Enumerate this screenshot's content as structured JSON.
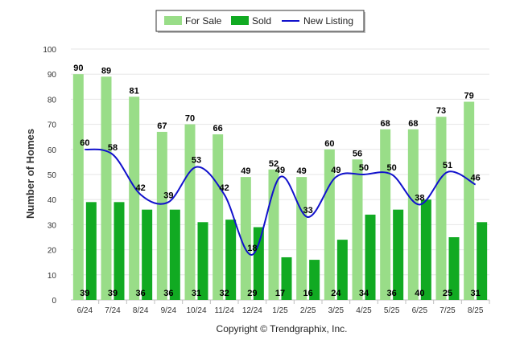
{
  "chart_data": {
    "type": "bar",
    "ylabel": "Number of Homes",
    "xlabel": "",
    "ylim": [
      0,
      100
    ],
    "yticks": [
      0,
      10,
      20,
      30,
      40,
      50,
      60,
      70,
      80,
      90,
      100
    ],
    "categories": [
      "6/24",
      "7/24",
      "8/24",
      "9/24",
      "10/24",
      "11/24",
      "12/24",
      "1/25",
      "2/25",
      "3/25",
      "4/25",
      "5/25",
      "6/25",
      "7/25",
      "8/25"
    ],
    "series": [
      {
        "name": "For Sale",
        "type": "bar",
        "color": "#99dd88",
        "values": [
          90,
          89,
          81,
          67,
          70,
          66,
          49,
          52,
          49,
          60,
          56,
          68,
          68,
          73,
          79
        ]
      },
      {
        "name": "Sold",
        "type": "bar",
        "color": "#11aa22",
        "values": [
          39,
          39,
          36,
          36,
          31,
          32,
          29,
          17,
          16,
          24,
          34,
          36,
          40,
          25,
          31
        ]
      },
      {
        "name": "New Listing",
        "type": "line",
        "color": "#1111cc",
        "values": [
          60,
          58,
          42,
          39,
          53,
          42,
          18,
          49,
          33,
          49,
          50,
          50,
          38,
          51,
          46
        ]
      }
    ],
    "grid": true,
    "legend_position": "top-center",
    "credit": "Copyright © Trendgraphix, Inc."
  }
}
